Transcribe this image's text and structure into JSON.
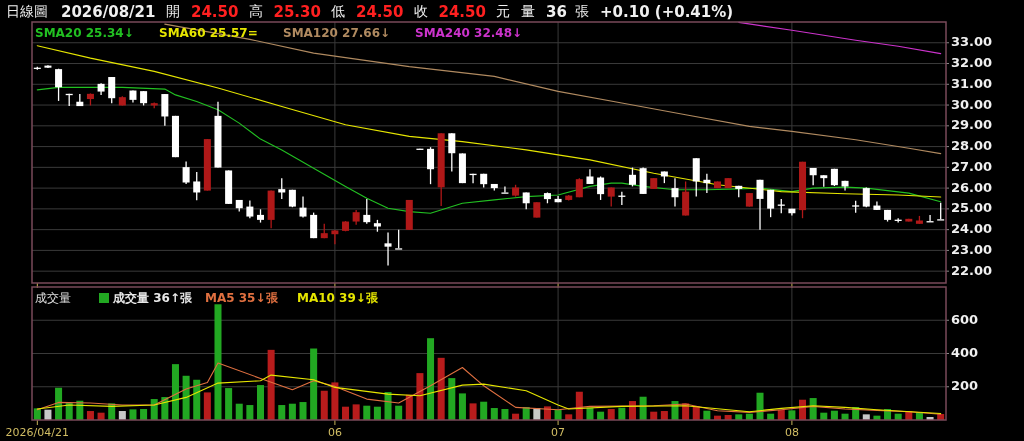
{
  "chart_data": [
    {
      "type": "candlestick",
      "annotations": [
        "日線圖",
        "2026/08/21",
        "開",
        "24.50",
        "高",
        "25.30",
        "低",
        "24.50",
        "收",
        "24.50",
        "元",
        "量",
        "36",
        "張",
        "+0.10 (+0.41%)"
      ],
      "categories": [
        "2026/04/21",
        null,
        null,
        null,
        null,
        null,
        null,
        null,
        null,
        null,
        null,
        null,
        null,
        null,
        null,
        null,
        null,
        null,
        null,
        null,
        null,
        null,
        null,
        null,
        null,
        null,
        null,
        null,
        "06",
        null,
        null,
        null,
        null,
        null,
        null,
        null,
        null,
        null,
        null,
        null,
        null,
        null,
        null,
        null,
        null,
        null,
        null,
        null,
        null,
        "07",
        null,
        null,
        null,
        null,
        null,
        null,
        null,
        null,
        null,
        null,
        null,
        null,
        null,
        null,
        null,
        null,
        null,
        null,
        null,
        null,
        null,
        "08",
        null,
        null,
        null,
        null,
        null,
        null,
        null,
        null,
        null,
        null,
        null,
        null,
        null,
        null
      ],
      "ohlc": [
        [
          31.8,
          31.85,
          31.7,
          31.8
        ],
        [
          31.9,
          31.92,
          31.78,
          31.8
        ],
        [
          31.73,
          31.75,
          30.2,
          30.86
        ],
        [
          30.54,
          30.54,
          29.96,
          30.54
        ],
        [
          30.16,
          30.53,
          29.95,
          29.95
        ],
        [
          30.29,
          30.56,
          29.98,
          30.54
        ],
        [
          31.02,
          31.05,
          30.49,
          30.65
        ],
        [
          31.35,
          31.35,
          30.09,
          30.33
        ],
        [
          29.98,
          30.42,
          29.98,
          30.38
        ],
        [
          30.7,
          30.7,
          30.12,
          30.25
        ],
        [
          30.67,
          30.67,
          29.98,
          30.09
        ],
        [
          29.98,
          30.12,
          29.85,
          30.09
        ],
        [
          30.53,
          30.53,
          29.0,
          29.45
        ],
        [
          29.48,
          29.48,
          27.49,
          27.49
        ],
        [
          27.01,
          27.28,
          26.2,
          26.27
        ],
        [
          26.32,
          26.78,
          25.41,
          25.79
        ],
        [
          25.88,
          28.36,
          25.88,
          28.36
        ],
        [
          29.48,
          30.16,
          26.99,
          26.99
        ],
        [
          26.85,
          26.85,
          25.24,
          25.24
        ],
        [
          25.43,
          25.43,
          24.87,
          25.03
        ],
        [
          25.11,
          25.4,
          24.55,
          24.63
        ],
        [
          24.71,
          24.98,
          24.34,
          24.47
        ],
        [
          24.47,
          25.88,
          24.07,
          25.88
        ],
        [
          25.95,
          26.48,
          25.48,
          25.79
        ],
        [
          25.92,
          25.92,
          25.08,
          25.11
        ],
        [
          25.06,
          25.59,
          24.58,
          24.63
        ],
        [
          24.71,
          24.82,
          23.59,
          23.59
        ],
        [
          23.59,
          24.28,
          23.59,
          23.83
        ],
        [
          23.78,
          23.98,
          23.3,
          23.96
        ],
        [
          23.94,
          24.41,
          23.92,
          24.39
        ],
        [
          24.39,
          24.95,
          24.23,
          24.84
        ],
        [
          24.71,
          25.48,
          24.28,
          24.36
        ],
        [
          24.31,
          24.47,
          23.9,
          24.15
        ],
        [
          23.34,
          23.86,
          22.27,
          23.18
        ],
        [
          23.1,
          23.99,
          23.1,
          23.1
        ],
        [
          23.99,
          25.43,
          23.99,
          25.43
        ],
        [
          27.9,
          27.9,
          27.88,
          27.88
        ],
        [
          27.89,
          27.97,
          26.19,
          26.91
        ],
        [
          26.04,
          28.64,
          25.14,
          28.64
        ],
        [
          28.64,
          28.64,
          26.8,
          27.68
        ],
        [
          27.67,
          27.67,
          26.24,
          26.24
        ],
        [
          26.69,
          26.69,
          26.24,
          26.69
        ],
        [
          26.69,
          26.69,
          26.03,
          26.19
        ],
        [
          26.2,
          26.2,
          25.88,
          26.0
        ],
        [
          25.79,
          26.08,
          25.79,
          25.79
        ],
        [
          25.64,
          26.16,
          25.59,
          26.03
        ],
        [
          25.79,
          25.79,
          24.98,
          25.27
        ],
        [
          24.58,
          25.32,
          24.58,
          25.32
        ],
        [
          25.76,
          25.79,
          25.27,
          25.47
        ],
        [
          25.48,
          25.62,
          25.32,
          25.32
        ],
        [
          25.43,
          25.67,
          25.4,
          25.64
        ],
        [
          25.56,
          26.48,
          25.56,
          26.43
        ],
        [
          26.56,
          26.91,
          26.2,
          26.2
        ],
        [
          26.51,
          26.56,
          25.43,
          25.71
        ],
        [
          25.59,
          26.03,
          25.11,
          26.03
        ],
        [
          25.64,
          25.83,
          25.19,
          25.62
        ],
        [
          26.64,
          26.99,
          26.08,
          26.16
        ],
        [
          26.96,
          26.99,
          25.72,
          25.72
        ],
        [
          25.96,
          26.48,
          25.96,
          26.48
        ],
        [
          26.8,
          26.8,
          26.24,
          26.56
        ],
        [
          26.0,
          26.48,
          25.11,
          25.56
        ],
        [
          24.68,
          26.32,
          24.68,
          25.83
        ],
        [
          27.44,
          27.44,
          25.59,
          26.32
        ],
        [
          26.4,
          26.69,
          25.76,
          26.24
        ],
        [
          26.0,
          26.32,
          26.0,
          26.32
        ],
        [
          26.0,
          26.48,
          26.0,
          26.48
        ],
        [
          26.11,
          26.11,
          25.56,
          25.96
        ],
        [
          25.11,
          25.76,
          25.11,
          25.76
        ],
        [
          26.4,
          26.4,
          23.99,
          25.48
        ],
        [
          25.92,
          25.92,
          24.6,
          25.01
        ],
        [
          25.21,
          25.48,
          24.79,
          25.19
        ],
        [
          25.01,
          25.01,
          24.68,
          24.79
        ],
        [
          24.94,
          27.27,
          24.55,
          27.27
        ],
        [
          26.97,
          26.97,
          26.14,
          26.62
        ],
        [
          26.62,
          26.62,
          26.06,
          26.48
        ],
        [
          26.93,
          26.93,
          26.1,
          26.14
        ],
        [
          26.35,
          26.35,
          25.88,
          26.08
        ],
        [
          25.17,
          25.39,
          24.81,
          25.16
        ],
        [
          26.0,
          26.03,
          25.08,
          25.11
        ],
        [
          25.16,
          25.35,
          24.95,
          24.95
        ],
        [
          24.95,
          24.95,
          24.39,
          24.47
        ],
        [
          24.48,
          24.55,
          24.34,
          24.47
        ],
        [
          24.39,
          24.52,
          24.39,
          24.52
        ],
        [
          24.28,
          24.66,
          24.28,
          24.44
        ],
        [
          24.41,
          24.71,
          24.41,
          24.41
        ],
        [
          24.5,
          25.3,
          24.5,
          24.5
        ]
      ],
      "colors": [
        "#ffffff",
        "#ffffff",
        "#ffffff",
        "#ffffff",
        "#ffffff",
        "#b01818",
        "#ffffff",
        "#ffffff",
        "#b01818",
        "#ffffff",
        "#ffffff",
        "#b01818",
        "#ffffff",
        "#ffffff",
        "#ffffff",
        "#ffffff",
        "#b01818",
        "#ffffff",
        "#ffffff",
        "#ffffff",
        "#ffffff",
        "#ffffff",
        "#b01818",
        "#ffffff",
        "#ffffff",
        "#ffffff",
        "#ffffff",
        "#b01818",
        "#b01818",
        "#b01818",
        "#b01818",
        "#ffffff",
        "#ffffff",
        "#ffffff",
        "#ffffff",
        "#b01818",
        "#ffffff",
        "#ffffff",
        "#b01818",
        "#ffffff",
        "#ffffff",
        "#ffffff",
        "#ffffff",
        "#ffffff",
        "#ffffff",
        "#b01818",
        "#ffffff",
        "#b01818",
        "#ffffff",
        "#ffffff",
        "#b01818",
        "#b01818",
        "#ffffff",
        "#ffffff",
        "#b01818",
        "#ffffff",
        "#ffffff",
        "#ffffff",
        "#b01818",
        "#ffffff",
        "#ffffff",
        "#b01818",
        "#ffffff",
        "#ffffff",
        "#b01818",
        "#b01818",
        "#ffffff",
        "#b01818",
        "#ffffff",
        "#ffffff",
        "#ffffff",
        "#ffffff",
        "#b01818",
        "#ffffff",
        "#ffffff",
        "#ffffff",
        "#ffffff",
        "#ffffff",
        "#ffffff",
        "#ffffff",
        "#ffffff",
        "#ffffff",
        "#b01818",
        "#b01818",
        "#ffffff",
        "#ffffff"
      ],
      "series": [
        {
          "type": "line",
          "name": "SMA20 25.34↓",
          "color": "#22c022",
          "values": [
            30.73,
            null,
            30.85,
            null,
            null,
            30.85,
            null,
            null,
            30.85,
            null,
            null,
            null,
            30.77,
            30.49,
            null,
            30.17,
            null,
            29.77,
            null,
            29.13,
            null,
            28.36,
            null,
            27.84,
            null,
            null,
            26.96,
            null,
            null,
            26.08,
            null,
            25.51,
            null,
            25.03,
            null,
            24.87,
            null,
            24.79,
            null,
            null,
            25.27,
            null,
            null,
            25.43,
            null,
            null,
            25.59,
            null,
            null,
            25.67,
            null,
            null,
            26.08,
            null,
            26.24,
            26.24,
            null,
            26.08,
            null,
            null,
            25.92,
            null,
            null,
            25.92,
            null,
            null,
            25.96,
            null,
            26.0,
            null,
            null,
            25.83,
            null,
            26.0,
            null,
            null,
            26.05,
            null,
            26.0,
            null,
            null,
            null,
            25.76,
            null,
            null,
            25.34
          ]
        },
        {
          "type": "line",
          "name": "SMA60 25.57=",
          "color": "#e6e600",
          "values": [
            32.86,
            null,
            null,
            null,
            null,
            32.26,
            null,
            null,
            null,
            null,
            null,
            31.62,
            null,
            null,
            null,
            null,
            null,
            30.82,
            null,
            null,
            null,
            null,
            null,
            29.93,
            null,
            null,
            null,
            null,
            null,
            29.05,
            null,
            null,
            null,
            null,
            null,
            28.49,
            null,
            null,
            null,
            null,
            28.24,
            null,
            null,
            null,
            null,
            null,
            27.84,
            null,
            null,
            null,
            null,
            null,
            27.36,
            null,
            null,
            null,
            null,
            null,
            26.72,
            null,
            null,
            null,
            null,
            null,
            26.16,
            null,
            null,
            null,
            null,
            null,
            25.83,
            null,
            null,
            null,
            null,
            null,
            25.73,
            null,
            null,
            null,
            null,
            25.67,
            null,
            null,
            null,
            25.57
          ]
        },
        {
          "type": "line",
          "name": "SMA120 27.66↓",
          "color": "#b08a60",
          "values": [
            null,
            null,
            null,
            null,
            null,
            null,
            null,
            null,
            null,
            null,
            null,
            null,
            33.9,
            null,
            null,
            null,
            null,
            null,
            null,
            null,
            33.16,
            null,
            null,
            null,
            null,
            null,
            32.5,
            null,
            null,
            null,
            null,
            null,
            null,
            null,
            null,
            31.85,
            null,
            null,
            null,
            null,
            null,
            null,
            null,
            31.38,
            null,
            null,
            null,
            null,
            null,
            30.66,
            null,
            null,
            null,
            null,
            null,
            30.1,
            null,
            null,
            null,
            null,
            null,
            29.53,
            null,
            null,
            null,
            null,
            null,
            28.97,
            null,
            null,
            null,
            28.73,
            null,
            null,
            null,
            null,
            null,
            28.33,
            null,
            null,
            null,
            null,
            27.92,
            null,
            null,
            27.66
          ]
        },
        {
          "type": "line",
          "name": "SMA240 32.48↓",
          "color": "#cc33cc",
          "values": [
            null,
            null,
            null,
            null,
            null,
            null,
            null,
            null,
            null,
            null,
            null,
            null,
            null,
            null,
            null,
            null,
            null,
            null,
            null,
            null,
            null,
            null,
            null,
            null,
            null,
            null,
            null,
            null,
            null,
            null,
            null,
            null,
            null,
            null,
            null,
            null,
            null,
            null,
            null,
            null,
            null,
            null,
            null,
            null,
            null,
            null,
            null,
            null,
            null,
            null,
            null,
            null,
            null,
            null,
            null,
            null,
            null,
            null,
            null,
            null,
            null,
            null,
            null,
            null,
            null,
            null,
            33.98,
            null,
            null,
            null,
            null,
            33.6,
            null,
            null,
            null,
            null,
            null,
            33.12,
            null,
            null,
            null,
            32.83,
            null,
            null,
            null,
            32.48
          ]
        }
      ],
      "ylim": [
        21.43,
        34.0
      ],
      "yticks": [
        {
          "value": 22,
          "label": "22.00"
        },
        {
          "value": 23,
          "label": "23.00"
        },
        {
          "value": 24,
          "label": "24.00"
        },
        {
          "value": 25,
          "label": "25.00"
        },
        {
          "value": 26,
          "label": "26.00"
        },
        {
          "value": 27,
          "label": "27.00"
        },
        {
          "value": 28,
          "label": "28.00"
        },
        {
          "value": 29,
          "label": "29.00"
        },
        {
          "value": 30,
          "label": "30.00"
        },
        {
          "value": 31,
          "label": "31.00"
        },
        {
          "value": 32,
          "label": "32.00"
        },
        {
          "value": 33,
          "label": "33.00"
        }
      ],
      "grid": true,
      "legend": "top left",
      "tick_labels": "y"
    },
    {
      "type": "bar",
      "title": "成交量",
      "categories": [
        "2026/04/21",
        null,
        null,
        null,
        null,
        null,
        null,
        null,
        null,
        null,
        null,
        null,
        null,
        null,
        null,
        null,
        null,
        null,
        null,
        null,
        null,
        null,
        null,
        null,
        null,
        null,
        null,
        null,
        "06",
        null,
        null,
        null,
        null,
        null,
        null,
        null,
        null,
        null,
        null,
        null,
        null,
        null,
        null,
        null,
        null,
        null,
        null,
        null,
        null,
        "07",
        null,
        null,
        null,
        null,
        null,
        null,
        null,
        null,
        null,
        null,
        null,
        null,
        null,
        null,
        null,
        null,
        null,
        null,
        null,
        null,
        null,
        "08",
        null,
        null,
        null,
        null,
        null,
        null,
        null,
        null,
        null,
        null,
        null,
        null,
        null,
        null
      ],
      "series": [
        {
          "name": "成交量 36↑張",
          "color": "#22a822",
          "colors": [
            "#22a822",
            "#c8c8c8",
            "#22a822",
            "#22a822",
            "#22a822",
            "#b81c1c",
            "#b81c1c",
            "#22a822",
            "#c8c8c8",
            "#22a822",
            "#22a822",
            "#22a822",
            "#22a822",
            "#22a822",
            "#22a822",
            "#22a822",
            "#b81c1c",
            "#22a822",
            "#22a822",
            "#22a822",
            "#22a822",
            "#22a822",
            "#b81c1c",
            "#22a822",
            "#22a822",
            "#22a822",
            "#22a822",
            "#b81c1c",
            "#b81c1c",
            "#b81c1c",
            "#b81c1c",
            "#22a822",
            "#22a822",
            "#22a822",
            "#22a822",
            "#b81c1c",
            "#b81c1c",
            "#22a822",
            "#b81c1c",
            "#22a822",
            "#22a822",
            "#b81c1c",
            "#22a822",
            "#22a822",
            "#22a822",
            "#b81c1c",
            "#22a822",
            "#c8c8c8",
            "#b81c1c",
            "#22a822",
            "#b81c1c",
            "#b81c1c",
            "#22a822",
            "#22a822",
            "#b81c1c",
            "#22a822",
            "#b81c1c",
            "#22a822",
            "#b81c1c",
            "#b81c1c",
            "#22a822",
            "#b81c1c",
            "#b81c1c",
            "#22a822",
            "#b81c1c",
            "#b81c1c",
            "#22a822",
            "#22a822",
            "#22a822",
            "#22a822",
            "#b81c1c",
            "#22a822",
            "#b81c1c",
            "#22a822",
            "#22a822",
            "#22a822",
            "#22a822",
            "#22a822",
            "#c8c8c8",
            "#22a822",
            "#22a822",
            "#22a822",
            "#b81c1c",
            "#22a822",
            "#c8c8c8",
            "#b81c1c"
          ],
          "values": [
            70,
            62,
            194,
            102,
            116,
            54,
            44,
            100,
            54,
            64,
            66,
            126,
            138,
            336,
            266,
            242,
            166,
            696,
            192,
            98,
            90,
            210,
            422,
            90,
            98,
            108,
            430,
            176,
            226,
            80,
            94,
            86,
            80,
            168,
            86,
            152,
            282,
            492,
            374,
            252,
            160,
            100,
            110,
            72,
            66,
            38,
            78,
            72,
            82,
            60,
            34,
            170,
            74,
            50,
            66,
            74,
            114,
            140,
            50,
            54,
            114,
            100,
            82,
            56,
            26,
            30,
            34,
            38,
            164,
            38,
            60,
            58,
            122,
            132,
            44,
            56,
            38,
            78,
            34,
            26,
            66,
            38,
            54,
            46,
            18,
            36
          ]
        },
        {
          "type": "line",
          "name": "MA5 35↓張",
          "color": "#e07040",
          "values": [
            62,
            null,
            106,
            null,
            null,
            102,
            null,
            null,
            90,
            null,
            null,
            90,
            null,
            null,
            186,
            null,
            226,
            342,
            null,
            null,
            null,
            250,
            null,
            null,
            182,
            null,
            236,
            null,
            202,
            null,
            null,
            126,
            null,
            null,
            102,
            null,
            null,
            206,
            null,
            null,
            316,
            null,
            206,
            null,
            null,
            76,
            null,
            null,
            null,
            62,
            null,
            null,
            82,
            null,
            null,
            null,
            null,
            null,
            86,
            null,
            null,
            96,
            null,
            null,
            56,
            null,
            null,
            46,
            null,
            null,
            62,
            null,
            null,
            82,
            null,
            null,
            66,
            null,
            null,
            58,
            null,
            null,
            50,
            null,
            null,
            35
          ]
        },
        {
          "type": "line",
          "name": "MA10 39↓張",
          "color": "#e6e600",
          "values": [
            66,
            null,
            null,
            90,
            null,
            null,
            null,
            82,
            null,
            null,
            null,
            90,
            null,
            null,
            136,
            null,
            null,
            222,
            null,
            null,
            null,
            236,
            270,
            null,
            null,
            null,
            242,
            null,
            196,
            null,
            null,
            null,
            null,
            156,
            null,
            null,
            146,
            null,
            null,
            null,
            210,
            null,
            216,
            null,
            null,
            null,
            176,
            null,
            null,
            90,
            66,
            null,
            null,
            null,
            null,
            82,
            null,
            null,
            null,
            null,
            null,
            86,
            null,
            null,
            null,
            null,
            null,
            50,
            null,
            null,
            70,
            null,
            null,
            86,
            null,
            null,
            76,
            null,
            null,
            62,
            null,
            null,
            null,
            null,
            null,
            39
          ]
        }
      ],
      "ylim": [
        0,
        800
      ],
      "yticks": [
        200,
        400,
        600
      ],
      "grid": true,
      "legend": "top left"
    }
  ]
}
